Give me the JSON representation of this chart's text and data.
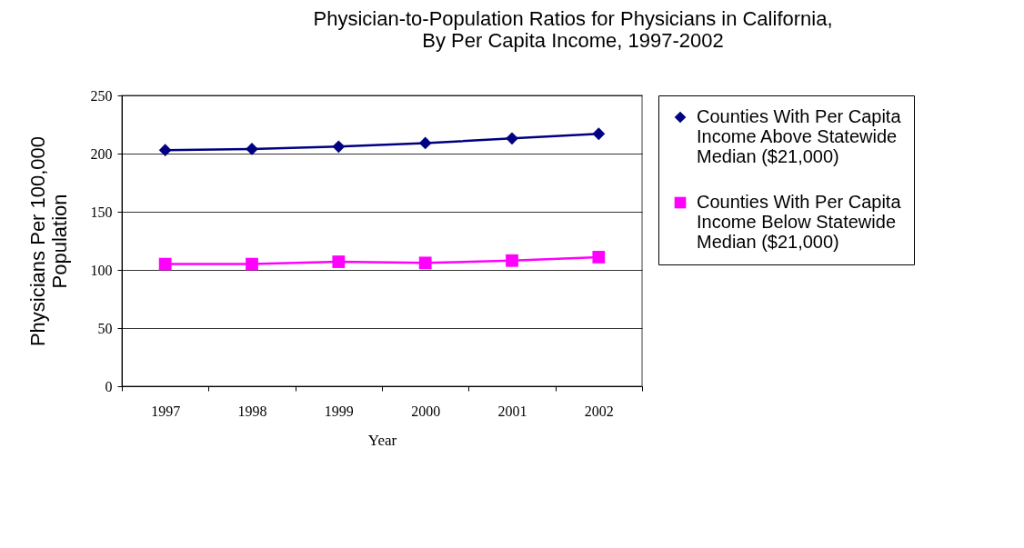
{
  "chart_data": {
    "type": "line",
    "title": "Physician-to-Population Ratios for Physicians in California,\nBy Per Capita Income, 1997-2002",
    "xlabel": "Year",
    "ylabel": "Physicians Per 100,000\nPopulation",
    "categories": [
      "1997",
      "1998",
      "1999",
      "2000",
      "2001",
      "2002"
    ],
    "series": [
      {
        "name": "Counties With Per Capita Income Above Statewide Median ($21,000)",
        "color": "#000080",
        "marker": "diamond",
        "values": [
          203,
          204,
          206,
          209,
          213,
          217
        ]
      },
      {
        "name": "Counties With Per Capita Income Below Statewide Median ($21,000)",
        "color": "#ff00ff",
        "marker": "square",
        "values": [
          105,
          105,
          107,
          106,
          108,
          111
        ]
      }
    ],
    "ylim": [
      0,
      250
    ],
    "yticks": [
      0,
      50,
      100,
      150,
      200,
      250
    ],
    "grid": "y",
    "legend": "right"
  }
}
